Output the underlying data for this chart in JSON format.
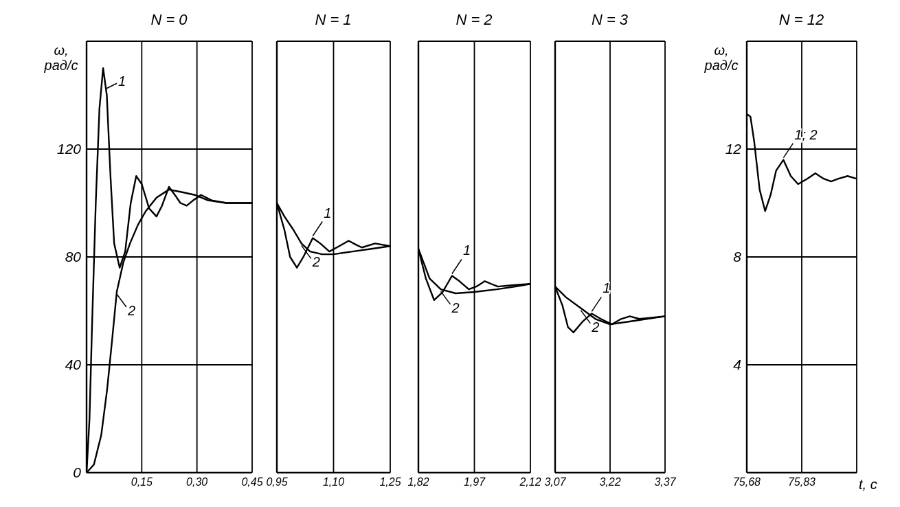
{
  "chart_data": [
    {
      "type": "line",
      "title": "N = 0",
      "ylabel": "ω, рад/с",
      "xlim": [
        0,
        0.45
      ],
      "xticks": [
        {
          "value": 0.15,
          "label": "0,15"
        },
        {
          "value": 0.3,
          "label": "0,30"
        },
        {
          "value": 0.45,
          "label": "0,45"
        }
      ],
      "ylim": [
        0,
        160
      ],
      "yticks": [
        0,
        40,
        80,
        120
      ],
      "grid": true,
      "marker": "none",
      "line_style": "solid",
      "series": [
        {
          "name": "1",
          "color": "#000000",
          "x": [
            0,
            0.008,
            0.015,
            0.025,
            0.035,
            0.045,
            0.055,
            0.065,
            0.075,
            0.09,
            0.105,
            0.12,
            0.135,
            0.15,
            0.17,
            0.19,
            0.205,
            0.224,
            0.24,
            0.255,
            0.272,
            0.29,
            0.311,
            0.34,
            0.38,
            0.45
          ],
          "values": [
            0,
            20,
            55,
            100,
            135,
            150,
            140,
            110,
            85,
            76,
            82,
            100,
            110,
            107,
            98,
            95,
            99,
            106,
            103,
            100,
            99,
            101,
            103,
            101,
            100,
            100
          ]
        },
        {
          "name": "2",
          "color": "#000000",
          "x": [
            0,
            0.02,
            0.04,
            0.056,
            0.07,
            0.082,
            0.1,
            0.118,
            0.14,
            0.161,
            0.19,
            0.224,
            0.26,
            0.294,
            0.33,
            0.38,
            0.45
          ],
          "values": [
            0,
            3,
            14,
            31,
            50,
            67,
            78,
            85,
            92,
            97,
            102,
            105,
            104,
            103,
            101,
            100,
            100
          ]
        }
      ]
    },
    {
      "type": "line",
      "title": "N = 1",
      "xlim": [
        0.95,
        1.25
      ],
      "xticks": [
        {
          "value": 0.95,
          "label": "0,95"
        },
        {
          "value": 1.1,
          "label": "1,10"
        },
        {
          "value": 1.25,
          "label": "1,25"
        }
      ],
      "ylim": [
        0,
        160
      ],
      "yticks": [
        0,
        40,
        80,
        120
      ],
      "tick_labels": "x",
      "grid": true,
      "marker": "none",
      "line_style": "solid",
      "series": [
        {
          "name": "1",
          "color": "#000000",
          "x": [
            0.95,
            0.97,
            0.985,
            1.003,
            1.02,
            1.045,
            1.065,
            1.089,
            1.115,
            1.14,
            1.16,
            1.175,
            1.21,
            1.25
          ],
          "values": [
            100,
            90,
            80,
            76,
            80,
            87,
            85,
            82,
            84,
            86,
            84.5,
            83.5,
            85,
            84
          ]
        },
        {
          "name": "2",
          "color": "#000000",
          "x": [
            0.95,
            0.97,
            0.994,
            1.015,
            1.038,
            1.07,
            1.1,
            1.15,
            1.2,
            1.25
          ],
          "values": [
            100,
            95,
            90,
            85,
            82,
            81,
            81,
            82,
            83,
            84
          ]
        }
      ]
    },
    {
      "type": "line",
      "title": "N = 2",
      "xlim": [
        1.82,
        2.12
      ],
      "xticks": [
        {
          "value": 1.82,
          "label": "1,82"
        },
        {
          "value": 1.97,
          "label": "1,97"
        },
        {
          "value": 2.12,
          "label": "2,12"
        }
      ],
      "ylim": [
        0,
        160
      ],
      "yticks": [
        0,
        40,
        80,
        120
      ],
      "tick_labels": "x",
      "grid": true,
      "marker": "none",
      "line_style": "solid",
      "series": [
        {
          "name": "1",
          "color": "#000000",
          "x": [
            1.82,
            1.84,
            1.862,
            1.885,
            1.91,
            1.93,
            1.955,
            1.975,
            1.998,
            2.015,
            2.033,
            2.07,
            2.12
          ],
          "values": [
            83,
            72,
            64,
            67,
            73,
            71,
            68,
            69,
            71,
            70,
            69,
            69.5,
            70
          ]
        },
        {
          "name": "2",
          "color": "#000000",
          "x": [
            1.82,
            1.85,
            1.88,
            1.92,
            1.97,
            2.03,
            2.08,
            2.12
          ],
          "values": [
            83,
            72,
            68,
            66.5,
            67,
            68,
            69,
            70
          ]
        }
      ]
    },
    {
      "type": "line",
      "title": "N = 3",
      "xlim": [
        3.07,
        3.37
      ],
      "xticks": [
        {
          "value": 3.07,
          "label": "3,07"
        },
        {
          "value": 3.22,
          "label": "3,22"
        },
        {
          "value": 3.37,
          "label": "3,37"
        }
      ],
      "ylim": [
        0,
        160
      ],
      "yticks": [
        0,
        40,
        80,
        120
      ],
      "tick_labels": "x",
      "grid": true,
      "marker": "none",
      "line_style": "solid",
      "series": [
        {
          "name": "1",
          "color": "#000000",
          "x": [
            3.07,
            3.09,
            3.105,
            3.12,
            3.145,
            3.17,
            3.195,
            3.225,
            3.25,
            3.274,
            3.3,
            3.37
          ],
          "values": [
            69,
            62,
            54,
            52,
            56,
            59,
            57,
            55,
            57,
            58,
            57,
            58
          ]
        },
        {
          "name": "2",
          "color": "#000000",
          "x": [
            3.07,
            3.1,
            3.14,
            3.18,
            3.22,
            3.27,
            3.32,
            3.37
          ],
          "values": [
            69,
            65,
            61,
            57,
            55,
            56,
            57,
            58
          ]
        }
      ]
    },
    {
      "type": "line",
      "title": "N = 12",
      "ylabel": "ω, рад/с",
      "xlabel": "t, c",
      "xlim": [
        75.68,
        75.98
      ],
      "xticks": [
        {
          "value": 75.68,
          "label": "75,68"
        },
        {
          "value": 75.83,
          "label": "75,83"
        }
      ],
      "ylim": [
        0,
        16
      ],
      "yticks": [
        4,
        8,
        12
      ],
      "grid": true,
      "marker": "none",
      "line_style": "solid",
      "series": [
        {
          "name": "1; 2",
          "color": "#000000",
          "x": [
            75.68,
            75.69,
            75.7,
            75.715,
            75.73,
            75.745,
            75.76,
            75.78,
            75.8,
            75.82,
            75.845,
            75.867,
            75.89,
            75.91,
            75.93,
            75.955,
            75.98
          ],
          "values": [
            13.3,
            13.2,
            12.3,
            10.5,
            9.7,
            10.3,
            11.2,
            11.6,
            11,
            10.7,
            10.9,
            11.1,
            10.9,
            10.8,
            10.9,
            11,
            10.9
          ]
        }
      ]
    }
  ]
}
